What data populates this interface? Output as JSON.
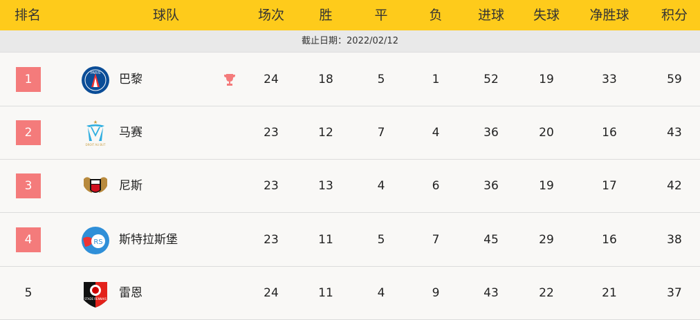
{
  "headers": [
    "排名",
    "球队",
    "场次",
    "胜",
    "平",
    "负",
    "进球",
    "失球",
    "净胜球",
    "积分"
  ],
  "date_label": "截止日期：2022/02/12",
  "accent_color": "#fecb1b",
  "rank_badge_color": "#f47b7b",
  "rows": [
    {
      "rank": "1",
      "team": "巴黎",
      "logo": "psg-logo",
      "trophy": true,
      "stats": [
        "24",
        "18",
        "5",
        "1",
        "52",
        "19",
        "33",
        "59"
      ]
    },
    {
      "rank": "2",
      "team": "马赛",
      "logo": "marseille-logo",
      "trophy": false,
      "stats": [
        "23",
        "12",
        "7",
        "4",
        "36",
        "20",
        "16",
        "43"
      ]
    },
    {
      "rank": "3",
      "team": "尼斯",
      "logo": "nice-logo",
      "trophy": false,
      "stats": [
        "23",
        "13",
        "4",
        "6",
        "36",
        "19",
        "17",
        "42"
      ]
    },
    {
      "rank": "4",
      "team": "斯特拉斯堡",
      "logo": "strasbourg-logo",
      "trophy": false,
      "stats": [
        "23",
        "11",
        "5",
        "7",
        "45",
        "29",
        "16",
        "38"
      ]
    },
    {
      "rank": "5",
      "team": "雷恩",
      "logo": "rennes-logo",
      "trophy": false,
      "stats": [
        "24",
        "11",
        "4",
        "9",
        "43",
        "22",
        "21",
        "37"
      ]
    }
  ]
}
